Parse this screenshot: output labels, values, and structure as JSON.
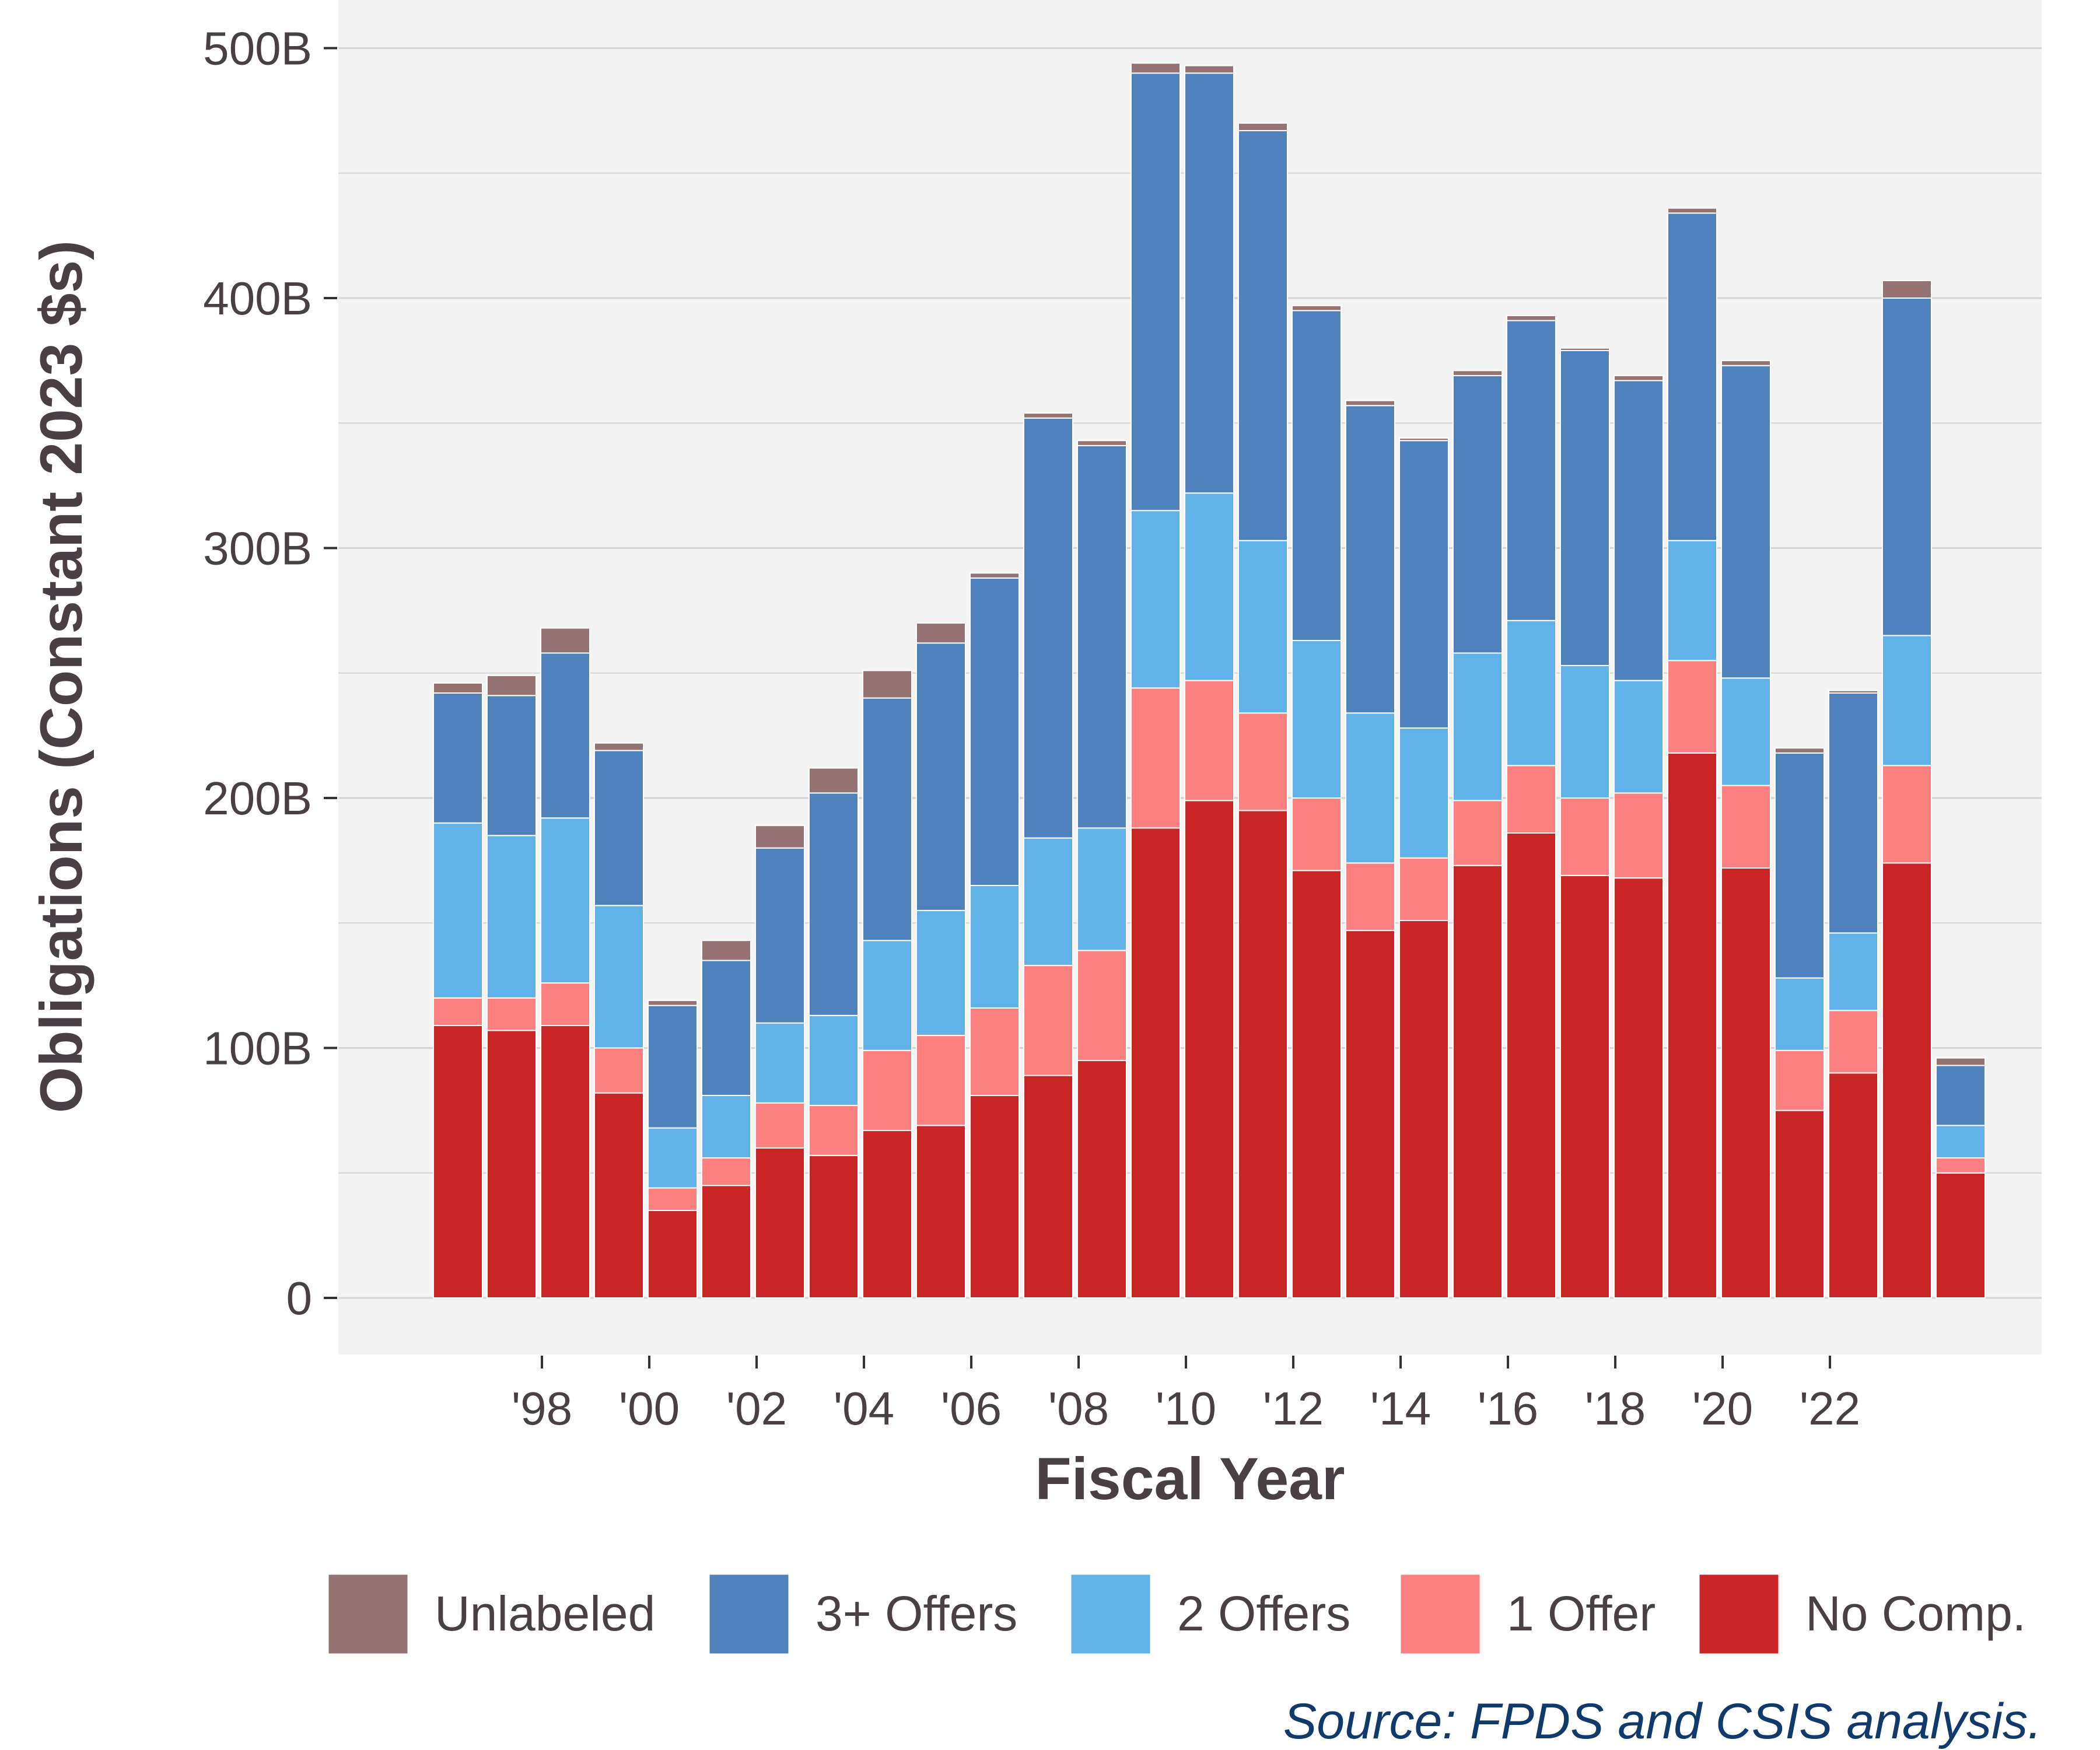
{
  "chart_data": {
    "type": "bar",
    "stacked": true,
    "xlabel": "Fiscal Year",
    "ylabel": "Obligations (Constant 2023 $s)",
    "source": "Source: FPDS and CSIS analysis.",
    "ylim": [
      -25,
      520
    ],
    "y_ticks": [
      0,
      100,
      200,
      300,
      400,
      500
    ],
    "y_tick_labels": [
      "0",
      "100B",
      "200B",
      "300B",
      "400B",
      "500B"
    ],
    "grid": true,
    "legend_position": "bottom",
    "years": [
      1997,
      1998,
      1999,
      2000,
      2001,
      2002,
      2003,
      2004,
      2005,
      2006,
      2007,
      2008,
      2009,
      2010,
      2011,
      2012,
      2013,
      2014,
      2015,
      2016,
      2017,
      2018,
      2019,
      2020,
      2021,
      2022,
      2023,
      2024,
      2025
    ],
    "x_ticks": [
      1998,
      2000,
      2002,
      2004,
      2006,
      2008,
      2010,
      2012,
      2014,
      2016,
      2018,
      2020,
      2022
    ],
    "x_tick_labels": [
      "'98",
      "'00",
      "'02",
      "'04",
      "'06",
      "'08",
      "'10",
      "'12",
      "'14",
      "'16",
      "'18",
      "'20",
      "'22"
    ],
    "series": [
      {
        "name": "No Comp.",
        "color": "#c92426",
        "values": [
          109,
          107,
          109,
          82,
          35,
          45,
          60,
          57,
          67,
          69,
          81,
          89,
          95,
          188,
          199,
          195,
          171,
          147,
          151,
          173,
          186,
          169,
          168,
          218,
          172,
          75,
          90,
          174,
          50
        ]
      },
      {
        "name": "1 Offer",
        "color": "#fd8080",
        "values": [
          11,
          13,
          17,
          18,
          9,
          11,
          18,
          20,
          32,
          36,
          35,
          44,
          44,
          56,
          48,
          39,
          29,
          27,
          25,
          26,
          27,
          31,
          34,
          37,
          33,
          24,
          25,
          39,
          6
        ]
      },
      {
        "name": "2 Offers",
        "color": "#61b2e8",
        "values": [
          70,
          65,
          66,
          57,
          24,
          25,
          32,
          36,
          44,
          50,
          49,
          51,
          49,
          71,
          75,
          69,
          63,
          60,
          52,
          59,
          58,
          53,
          45,
          48,
          43,
          29,
          31,
          52,
          13
        ]
      },
      {
        "name": "3+ Offers",
        "color": "#4f81bc",
        "values": [
          52,
          56,
          66,
          62,
          49,
          54,
          70,
          89,
          97,
          107,
          123,
          168,
          153,
          175,
          168,
          164,
          132,
          123,
          115,
          111,
          120,
          126,
          120,
          131,
          125,
          90,
          96,
          135,
          24
        ]
      },
      {
        "name": "Unlabeled",
        "color": "#957373",
        "values": [
          4,
          8,
          10,
          3,
          2,
          8,
          9,
          10,
          11,
          8,
          2,
          2,
          2,
          4,
          3,
          3,
          2,
          2,
          1,
          2,
          2,
          1,
          2,
          2,
          2,
          2,
          1,
          7,
          3
        ]
      }
    ],
    "legend": [
      "Unlabeled",
      "3+ Offers",
      "2 Offers",
      "1 Offer",
      "No Comp."
    ]
  },
  "theme": {
    "panel_background": "#f3f3f3",
    "grid_color": "#d6d6d6",
    "text_color": "#4a3f44",
    "source_color": "#0f3a6b"
  }
}
